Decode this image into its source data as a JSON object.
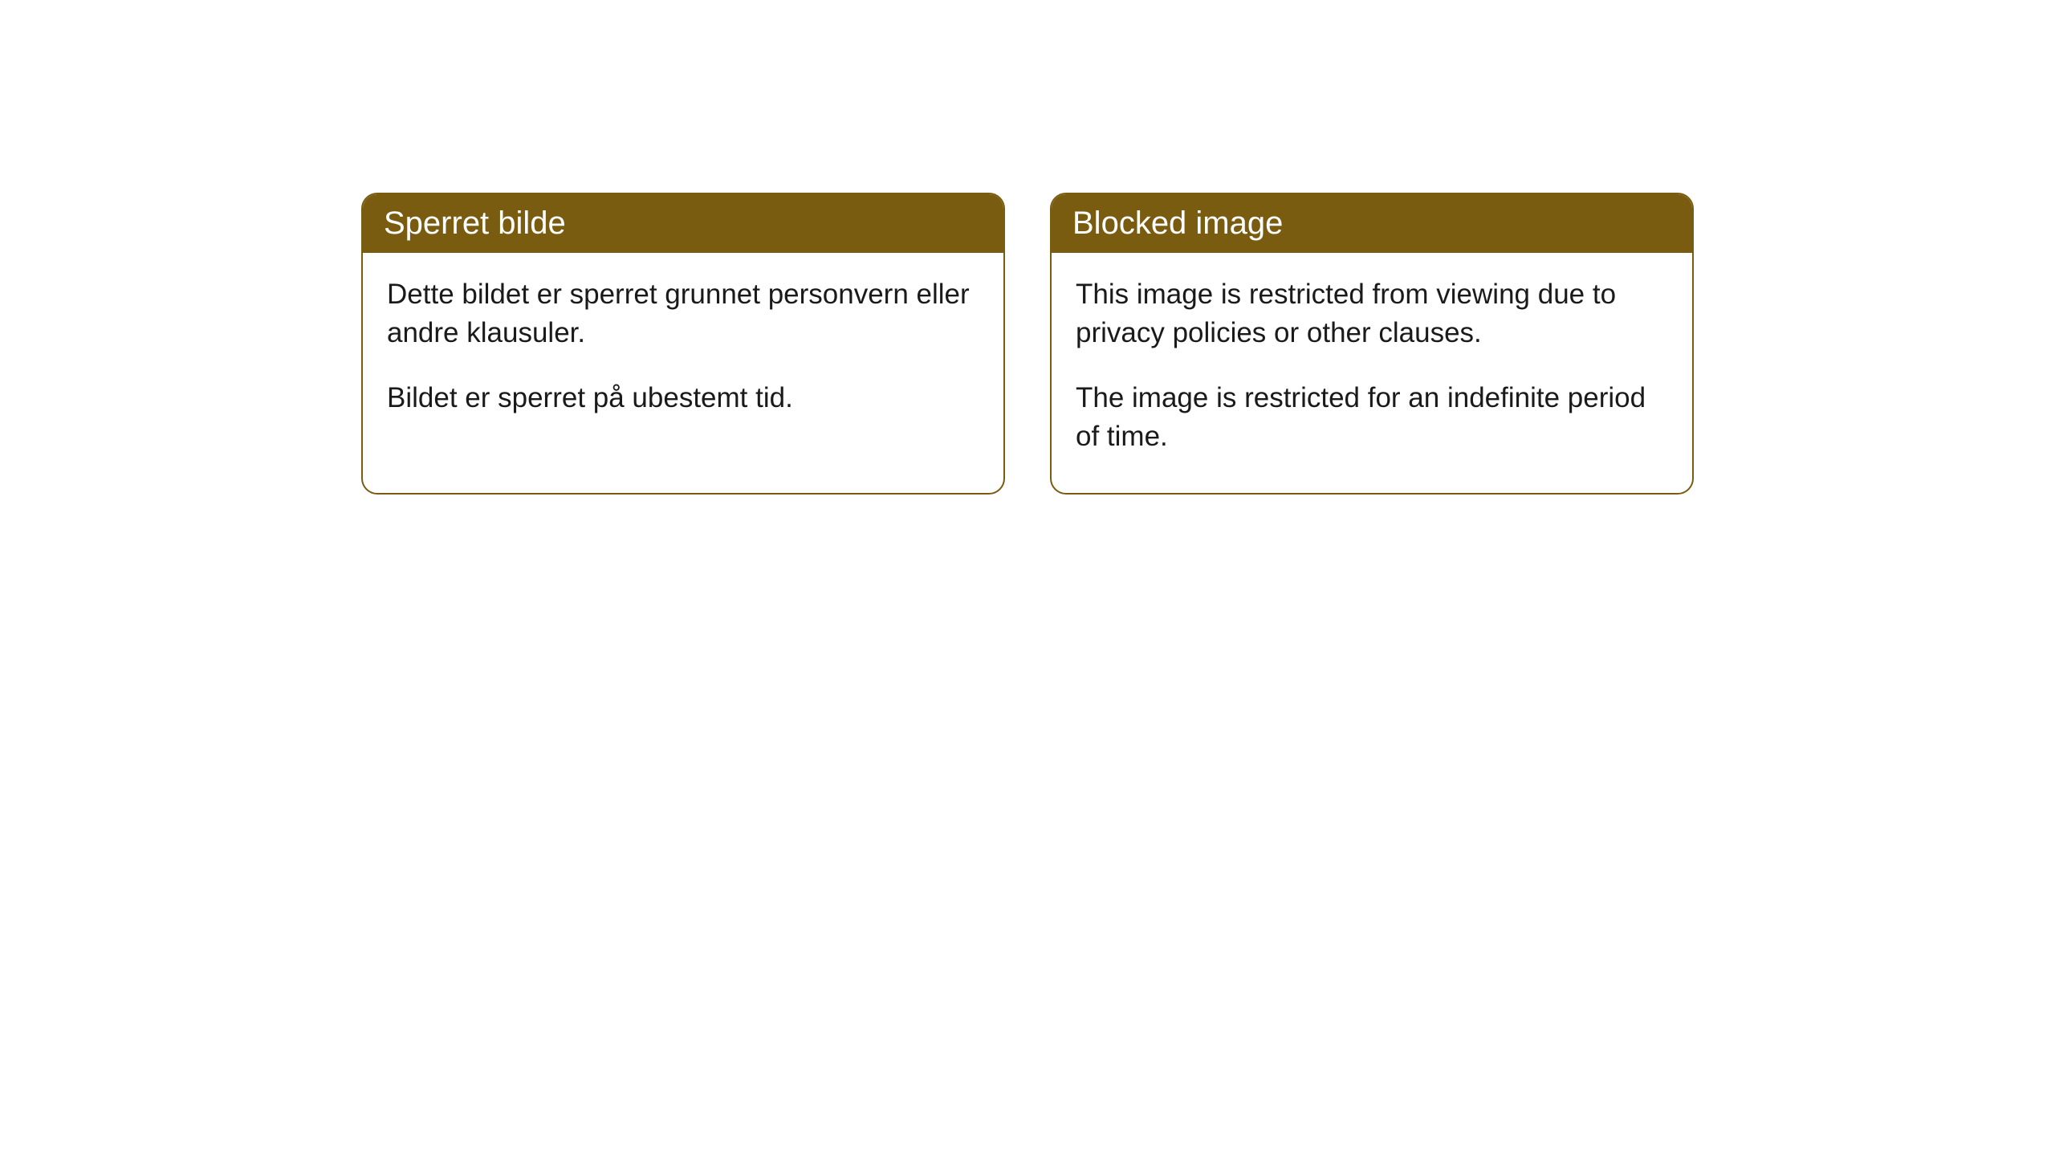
{
  "cards": [
    {
      "title": "Sperret bilde",
      "paragraph1": "Dette bildet er sperret grunnet personvern eller andre klausuler.",
      "paragraph2": "Bildet er sperret på ubestemt tid."
    },
    {
      "title": "Blocked image",
      "paragraph1": "This image is restricted from viewing due to privacy policies or other clauses.",
      "paragraph2": "The image is restricted for an indefinite period of time."
    }
  ],
  "style": {
    "header_bg_color": "#7a5c10",
    "header_text_color": "#ffffff",
    "border_color": "#7a5c10",
    "body_bg_color": "#ffffff",
    "body_text_color": "#1a1a1a",
    "border_radius": 20,
    "header_fontsize": 40,
    "body_fontsize": 35
  }
}
